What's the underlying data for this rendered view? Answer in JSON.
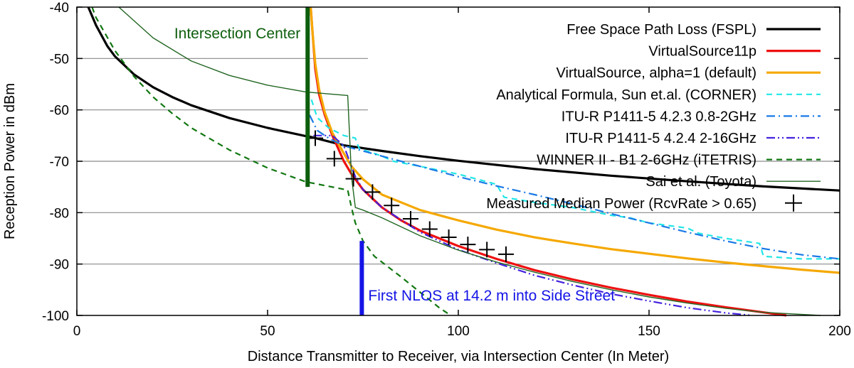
{
  "chart_data": {
    "type": "line",
    "title": "",
    "xlabel": "Distance Transmitter to Receiver, via Intersection Center (In Meter)",
    "ylabel": "Reception Power in dBm",
    "xlim": [
      0,
      200
    ],
    "ylim": [
      -100,
      -40
    ],
    "x_ticks": [
      0,
      50,
      100,
      150,
      200
    ],
    "y_ticks": [
      -100,
      -90,
      -80,
      -70,
      -60,
      -50,
      -40
    ],
    "x_tick_labels": [
      "0",
      "50",
      "100",
      "150",
      "200"
    ],
    "y_tick_labels": [
      "-100",
      "-90",
      "-80",
      "-70",
      "-60",
      "-50",
      "-40"
    ],
    "grid": "horizontal lines at -90, -80, -70, -60, -50",
    "legend_position": "top-right",
    "series": [
      {
        "name": "Free Space Path Loss (FSPL)",
        "color": "#000000",
        "style": "solid-thick",
        "points": [
          [
            3,
            -40
          ],
          [
            5,
            -43.5
          ],
          [
            8,
            -47.6
          ],
          [
            10,
            -49.6
          ],
          [
            15,
            -53.1
          ],
          [
            20,
            -55.6
          ],
          [
            25,
            -57.5
          ],
          [
            30,
            -59.1
          ],
          [
            40,
            -61.6
          ],
          [
            50,
            -63.5
          ],
          [
            60,
            -65.1
          ],
          [
            61,
            -65.2
          ],
          [
            70,
            -66.9
          ],
          [
            80,
            -68.0
          ],
          [
            90,
            -69.0
          ],
          [
            100,
            -69.9
          ],
          [
            120,
            -71.5
          ],
          [
            140,
            -72.8
          ],
          [
            160,
            -73.9
          ],
          [
            180,
            -74.9
          ],
          [
            200,
            -75.7
          ]
        ]
      },
      {
        "name": "VirtualSource11p",
        "color": "#ee1111",
        "style": "solid",
        "points": [
          [
            61.3,
            -40
          ],
          [
            61.8,
            -45
          ],
          [
            62.5,
            -52
          ],
          [
            63.5,
            -57
          ],
          [
            65,
            -61
          ],
          [
            67,
            -65
          ],
          [
            70,
            -70
          ],
          [
            72,
            -72.5
          ],
          [
            75,
            -75.5
          ],
          [
            80,
            -79
          ],
          [
            85,
            -81.5
          ],
          [
            90,
            -83.5
          ],
          [
            95,
            -85
          ],
          [
            100,
            -86.5
          ],
          [
            110,
            -89
          ],
          [
            120,
            -91.2
          ],
          [
            130,
            -93
          ],
          [
            140,
            -94.6
          ],
          [
            150,
            -96
          ],
          [
            160,
            -97.3
          ],
          [
            170,
            -98.4
          ],
          [
            180,
            -99.4
          ],
          [
            186,
            -100
          ]
        ]
      },
      {
        "name": "VirtualSource, alpha=1 (default)",
        "color": "#f5a800",
        "style": "solid",
        "points": [
          [
            61.3,
            -40
          ],
          [
            61.8,
            -45
          ],
          [
            62.5,
            -51
          ],
          [
            63.5,
            -56
          ],
          [
            65,
            -60.5
          ],
          [
            67,
            -64.5
          ],
          [
            70,
            -68.5
          ],
          [
            72,
            -71
          ],
          [
            75,
            -73.5
          ],
          [
            80,
            -76.5
          ],
          [
            90,
            -79.5
          ],
          [
            100,
            -81.5
          ],
          [
            110,
            -83.3
          ],
          [
            120,
            -84.8
          ],
          [
            130,
            -86
          ],
          [
            140,
            -87.1
          ],
          [
            150,
            -88
          ],
          [
            160,
            -88.9
          ],
          [
            170,
            -89.7
          ],
          [
            180,
            -90.4
          ],
          [
            190,
            -91.1
          ],
          [
            200,
            -91.7
          ]
        ]
      },
      {
        "name": "Analytical Formula, Sun et.al. (CORNER)",
        "color": "#22e6e6",
        "style": "dashed",
        "points": [
          [
            61.5,
            -58
          ],
          [
            63,
            -61.5
          ],
          [
            66,
            -63.5
          ],
          [
            70,
            -65
          ],
          [
            73,
            -65.5
          ],
          [
            74,
            -67.5
          ],
          [
            78,
            -68.5
          ],
          [
            80,
            -69
          ],
          [
            83,
            -70
          ],
          [
            90,
            -71
          ],
          [
            100,
            -72.5
          ],
          [
            110,
            -74.5
          ],
          [
            112,
            -77
          ],
          [
            120,
            -78
          ],
          [
            130,
            -79
          ],
          [
            140,
            -80.5
          ],
          [
            145,
            -81
          ],
          [
            150,
            -82
          ],
          [
            160,
            -83
          ],
          [
            163,
            -84
          ],
          [
            170,
            -85
          ],
          [
            179,
            -86
          ],
          [
            180,
            -88.5
          ],
          [
            190,
            -89
          ],
          [
            200,
            -89
          ]
        ]
      },
      {
        "name": "ITU-R P1411-5 4.2.3 0.8-2GHz",
        "color": "#1a7ae6",
        "style": "dash-dot",
        "points": [
          [
            61,
            -61
          ],
          [
            63,
            -64
          ],
          [
            66,
            -65.5
          ],
          [
            70,
            -67
          ],
          [
            75,
            -68
          ],
          [
            80,
            -69
          ],
          [
            90,
            -71
          ],
          [
            100,
            -73
          ],
          [
            110,
            -74.8
          ],
          [
            120,
            -76.5
          ],
          [
            130,
            -78.3
          ],
          [
            140,
            -80.2
          ],
          [
            150,
            -82
          ],
          [
            160,
            -83.8
          ],
          [
            170,
            -85.5
          ],
          [
            180,
            -87
          ],
          [
            190,
            -88.2
          ],
          [
            200,
            -89
          ]
        ]
      },
      {
        "name": "ITU-R P1411-5 4.2.4 2-16GHz",
        "color": "#4422dd",
        "style": "dash-dot-dot",
        "points": [
          [
            62,
            -65
          ],
          [
            67,
            -65
          ],
          [
            70,
            -67
          ],
          [
            72,
            -71
          ],
          [
            73,
            -73
          ],
          [
            75,
            -75.5
          ],
          [
            80,
            -79
          ],
          [
            90,
            -83.8
          ],
          [
            100,
            -87.2
          ],
          [
            110,
            -89.8
          ],
          [
            120,
            -92.2
          ],
          [
            130,
            -94.1
          ],
          [
            140,
            -95.8
          ],
          [
            150,
            -97.2
          ],
          [
            160,
            -98.5
          ],
          [
            170,
            -99.5
          ],
          [
            177,
            -100
          ]
        ]
      },
      {
        "name": "WINNER II - B1 2-6GHz (iTETRIS)",
        "color": "#117711",
        "style": "dashed",
        "points": [
          [
            4,
            -40
          ],
          [
            5,
            -42
          ],
          [
            10,
            -48.5
          ],
          [
            15,
            -53.5
          ],
          [
            20,
            -57.5
          ],
          [
            25,
            -60.7
          ],
          [
            30,
            -63.5
          ],
          [
            40,
            -67.8
          ],
          [
            50,
            -71.3
          ],
          [
            60,
            -74
          ],
          [
            71,
            -75.6
          ],
          [
            72,
            -79
          ],
          [
            73,
            -82
          ],
          [
            75,
            -85.5
          ],
          [
            78,
            -88.5
          ],
          [
            85,
            -92.5
          ],
          [
            95,
            -98.5
          ],
          [
            98,
            -100
          ]
        ]
      },
      {
        "name": "Sai et al. (Toyota)",
        "color": "#226622",
        "style": "solid-thin",
        "points": [
          [
            11,
            -40
          ],
          [
            20,
            -46
          ],
          [
            30,
            -50.5
          ],
          [
            40,
            -53.3
          ],
          [
            50,
            -55.2
          ],
          [
            60,
            -56.5
          ],
          [
            71,
            -57.2
          ],
          [
            72,
            -73
          ],
          [
            73,
            -79
          ],
          [
            75,
            -79.5
          ],
          [
            80,
            -81
          ],
          [
            90,
            -84.5
          ],
          [
            100,
            -87.3
          ],
          [
            110,
            -89.6
          ],
          [
            120,
            -91.6
          ],
          [
            130,
            -93.4
          ],
          [
            140,
            -95
          ],
          [
            150,
            -96.4
          ],
          [
            160,
            -97.6
          ],
          [
            170,
            -98.6
          ],
          [
            180,
            -99.4
          ],
          [
            195,
            -100
          ]
        ]
      },
      {
        "name": "Measured Median Power (RcvRate > 0.65)",
        "color": "#000000",
        "style": "points-plus",
        "points": [
          [
            62.5,
            -65.5
          ],
          [
            67.5,
            -69.5
          ],
          [
            72.5,
            -73.4
          ],
          [
            77.5,
            -76
          ],
          [
            82.5,
            -78.6
          ],
          [
            87.5,
            -81.2
          ],
          [
            92.5,
            -83.2
          ],
          [
            97.5,
            -84.8
          ],
          [
            102.5,
            -86.2
          ],
          [
            107.5,
            -87.2
          ],
          [
            112.5,
            -88.1
          ]
        ]
      }
    ],
    "markers": [
      {
        "label": "Intersection Center",
        "x": 60.5,
        "y_range": [
          -75,
          -40
        ],
        "color": "#0d5e0d"
      },
      {
        "label": "First NLOS at 14.2 m into Side Street",
        "x": 74.7,
        "y_range": [
          -100,
          -85.5
        ],
        "color": "#1414e6"
      }
    ]
  }
}
